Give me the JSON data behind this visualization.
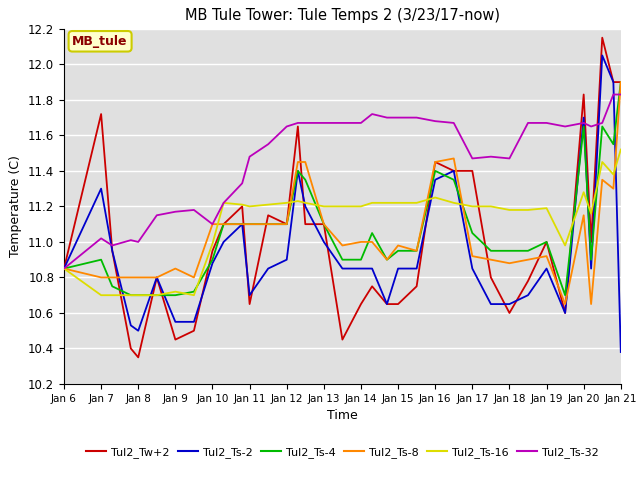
{
  "title": "MB Tule Tower: Tule Temps 2 (3/23/17-now)",
  "xlabel": "Time",
  "ylabel": "Temperature (C)",
  "ylim": [
    10.2,
    12.2
  ],
  "xlim": [
    0,
    15
  ],
  "background_color": "#e0e0e0",
  "grid_color": "#ffffff",
  "annotation_text": "MB_tule",
  "annotation_color": "#8b0000",
  "annotation_bg": "#ffffcc",
  "annotation_border": "#cccc00",
  "tick_labels": [
    "Jan 6",
    "Jan 7",
    "Jan 8",
    "Jan 9",
    "Jan 10",
    "Jan 11",
    "Jan 12",
    "Jan 13",
    "Jan 14",
    "Jan 15",
    "Jan 16",
    "Jan 17",
    "Jan 18",
    "Jan 19",
    "Jan 20",
    "Jan 21"
  ],
  "series": {
    "Tul2_Tw+2": {
      "color": "#cc0000",
      "data_x": [
        0,
        1,
        1.3,
        1.8,
        2.0,
        2.5,
        3.0,
        3.5,
        4.0,
        4.3,
        4.8,
        5.0,
        5.5,
        6.0,
        6.3,
        6.5,
        7.0,
        7.5,
        8.0,
        8.3,
        8.7,
        9.0,
        9.5,
        10.0,
        10.5,
        11.0,
        11.5,
        12.0,
        12.5,
        13.0,
        13.5,
        14.0,
        14.2,
        14.5,
        14.8,
        15.0
      ],
      "data_y": [
        10.85,
        11.72,
        10.95,
        10.4,
        10.35,
        10.8,
        10.45,
        10.5,
        10.95,
        11.1,
        11.2,
        10.65,
        11.15,
        11.1,
        11.65,
        11.1,
        11.1,
        10.45,
        10.65,
        10.75,
        10.65,
        10.65,
        10.75,
        11.45,
        11.4,
        11.4,
        10.8,
        10.6,
        10.78,
        11.0,
        10.6,
        11.83,
        11.0,
        12.15,
        11.9,
        11.9
      ]
    },
    "Tul2_Ts-2": {
      "color": "#0000cc",
      "data_x": [
        0,
        1,
        1.3,
        1.8,
        2.0,
        2.5,
        3.0,
        3.5,
        4.0,
        4.3,
        4.8,
        5.0,
        5.5,
        6.0,
        6.3,
        6.5,
        7.0,
        7.5,
        8.0,
        8.3,
        8.7,
        9.0,
        9.5,
        10.0,
        10.5,
        11.0,
        11.5,
        12.0,
        12.5,
        13.0,
        13.5,
        14.0,
        14.2,
        14.5,
        14.8,
        15.0
      ],
      "data_y": [
        10.85,
        11.3,
        10.95,
        10.53,
        10.5,
        10.8,
        10.55,
        10.55,
        10.88,
        11.0,
        11.1,
        10.7,
        10.85,
        10.9,
        11.4,
        11.2,
        11.0,
        10.85,
        10.85,
        10.85,
        10.65,
        10.85,
        10.85,
        11.35,
        11.4,
        10.85,
        10.65,
        10.65,
        10.7,
        10.85,
        10.6,
        11.7,
        10.85,
        12.05,
        11.9,
        10.38
      ]
    },
    "Tul2_Ts-4": {
      "color": "#00bb00",
      "data_x": [
        0,
        1,
        1.3,
        1.8,
        2.0,
        2.5,
        3.0,
        3.5,
        4.0,
        4.3,
        4.8,
        5.0,
        5.5,
        6.0,
        6.3,
        6.5,
        7.0,
        7.5,
        8.0,
        8.3,
        8.7,
        9.0,
        9.5,
        10.0,
        10.5,
        11.0,
        11.5,
        12.0,
        12.5,
        13.0,
        13.5,
        14.0,
        14.2,
        14.5,
        14.8,
        15.0
      ],
      "data_y": [
        10.85,
        10.9,
        10.75,
        10.7,
        10.7,
        10.7,
        10.7,
        10.72,
        10.9,
        11.1,
        11.1,
        11.1,
        11.1,
        11.1,
        11.4,
        11.35,
        11.1,
        10.9,
        10.9,
        11.05,
        10.9,
        10.95,
        10.95,
        11.4,
        11.35,
        11.05,
        10.95,
        10.95,
        10.95,
        11.0,
        10.7,
        11.65,
        10.9,
        11.65,
        11.55,
        11.9
      ]
    },
    "Tul2_Ts-8": {
      "color": "#ff8800",
      "data_x": [
        0,
        1,
        1.3,
        1.8,
        2.0,
        2.5,
        3.0,
        3.5,
        4.0,
        4.3,
        4.8,
        5.0,
        5.5,
        6.0,
        6.3,
        6.5,
        7.0,
        7.5,
        8.0,
        8.3,
        8.7,
        9.0,
        9.5,
        10.0,
        10.5,
        11.0,
        11.5,
        12.0,
        12.5,
        13.0,
        13.5,
        14.0,
        14.2,
        14.5,
        14.8,
        15.0
      ],
      "data_y": [
        10.85,
        10.8,
        10.8,
        10.8,
        10.8,
        10.8,
        10.85,
        10.8,
        11.1,
        11.1,
        11.1,
        11.1,
        11.1,
        11.1,
        11.45,
        11.45,
        11.1,
        10.98,
        11.0,
        11.0,
        10.9,
        10.98,
        10.95,
        11.45,
        11.47,
        10.92,
        10.9,
        10.88,
        10.9,
        10.92,
        10.65,
        11.15,
        10.65,
        11.35,
        11.3,
        11.9
      ]
    },
    "Tul2_Ts-16": {
      "color": "#dddd00",
      "data_x": [
        0,
        1,
        1.3,
        1.8,
        2.0,
        2.5,
        3.0,
        3.5,
        4.0,
        4.3,
        4.8,
        5.0,
        5.5,
        6.0,
        6.3,
        6.5,
        7.0,
        7.5,
        8.0,
        8.3,
        8.7,
        9.0,
        9.5,
        10.0,
        10.5,
        11.0,
        11.5,
        12.0,
        12.5,
        13.0,
        13.5,
        14.0,
        14.2,
        14.5,
        14.8,
        15.0
      ],
      "data_y": [
        10.85,
        10.7,
        10.7,
        10.7,
        10.7,
        10.7,
        10.72,
        10.7,
        10.99,
        11.22,
        11.21,
        11.2,
        11.21,
        11.22,
        11.23,
        11.22,
        11.2,
        11.2,
        11.2,
        11.22,
        11.22,
        11.22,
        11.22,
        11.25,
        11.22,
        11.2,
        11.2,
        11.18,
        11.18,
        11.19,
        10.98,
        11.28,
        11.16,
        11.45,
        11.38,
        11.52
      ]
    },
    "Tul2_Ts-32": {
      "color": "#bb00bb",
      "data_x": [
        0,
        1,
        1.3,
        1.8,
        2.0,
        2.5,
        3.0,
        3.5,
        4.0,
        4.3,
        4.8,
        5.0,
        5.5,
        6.0,
        6.3,
        6.5,
        7.0,
        7.5,
        8.0,
        8.3,
        8.7,
        9.0,
        9.5,
        10.0,
        10.5,
        11.0,
        11.5,
        12.0,
        12.5,
        13.0,
        13.5,
        14.0,
        14.2,
        14.5,
        14.8,
        15.0
      ],
      "data_y": [
        10.85,
        11.02,
        10.98,
        11.01,
        11.0,
        11.15,
        11.17,
        11.18,
        11.1,
        11.22,
        11.33,
        11.48,
        11.55,
        11.65,
        11.67,
        11.67,
        11.67,
        11.67,
        11.67,
        11.72,
        11.7,
        11.7,
        11.7,
        11.68,
        11.67,
        11.47,
        11.48,
        11.47,
        11.67,
        11.67,
        11.65,
        11.67,
        11.65,
        11.67,
        11.83,
        11.83
      ]
    }
  },
  "legend_order": [
    "Tul2_Tw+2",
    "Tul2_Ts-2",
    "Tul2_Ts-4",
    "Tul2_Ts-8",
    "Tul2_Ts-16",
    "Tul2_Ts-32"
  ],
  "yticks": [
    10.2,
    10.4,
    10.6,
    10.8,
    11.0,
    11.2,
    11.4,
    11.6,
    11.8,
    12.0,
    12.2
  ]
}
